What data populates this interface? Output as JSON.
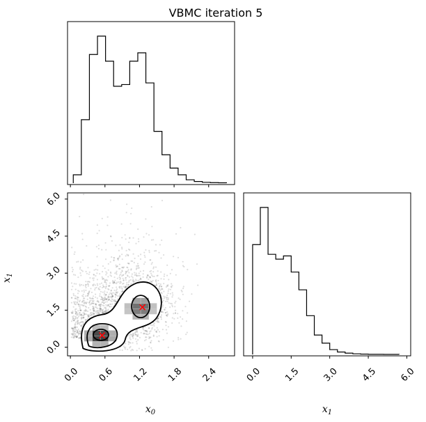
{
  "chart_data": {
    "type": "corner",
    "title": "VBMC iteration 5",
    "panels": [
      {
        "panel": "hist-x0",
        "type": "histogram-step",
        "xlim": [
          -0.05,
          2.85
        ],
        "bin_edges": [
          0.05,
          0.19,
          0.33,
          0.47,
          0.61,
          0.75,
          0.89,
          1.03,
          1.17,
          1.31,
          1.45,
          1.59,
          1.73,
          1.87,
          2.01,
          2.15,
          2.29,
          2.43,
          2.57,
          2.71
        ],
        "counts": [
          5,
          38,
          77,
          88,
          73,
          58,
          59,
          73,
          78,
          60,
          31,
          17,
          9,
          5,
          2,
          1,
          0.5,
          0.3,
          0.2
        ]
      },
      {
        "panel": "scatter-x0-x1",
        "type": "scatter-density-contour",
        "xlim": [
          -0.05,
          2.85
        ],
        "ylim": [
          -0.35,
          6.25
        ],
        "xticks": [
          "0.0",
          "0.6",
          "1.2",
          "1.8",
          "2.4"
        ],
        "yticks": [
          "0.0",
          "1.5",
          "3.0",
          "4.5",
          "6.0"
        ],
        "xlabel": "x0",
        "ylabel": "x1",
        "markers": [
          {
            "x": 0.55,
            "y": 0.48,
            "color": "#ff0000"
          },
          {
            "x": 1.25,
            "y": 1.62,
            "color": "#ff0000"
          }
        ]
      },
      {
        "panel": "hist-x1",
        "type": "histogram-step",
        "xlim": [
          -0.35,
          6.15
        ],
        "xticks": [
          "0.0",
          "1.5",
          "3.0",
          "4.5",
          "6.0"
        ],
        "xlabel": "x1",
        "bin_edges": [
          0.0,
          0.3,
          0.6,
          0.9,
          1.2,
          1.5,
          1.8,
          2.1,
          2.4,
          2.7,
          3.0,
          3.3,
          3.6,
          3.9,
          4.2,
          4.5,
          4.8,
          5.1,
          5.4,
          5.7
        ],
        "counts": [
          68,
          91,
          62,
          59,
          61,
          51,
          40,
          24,
          12,
          7,
          3,
          1.5,
          0.8,
          0.4,
          0.2,
          0.1,
          0.1,
          0.05,
          0.05
        ]
      }
    ]
  },
  "colors": {
    "line": "#000000",
    "marker": "#ff0000",
    "background": "#ffffff"
  }
}
